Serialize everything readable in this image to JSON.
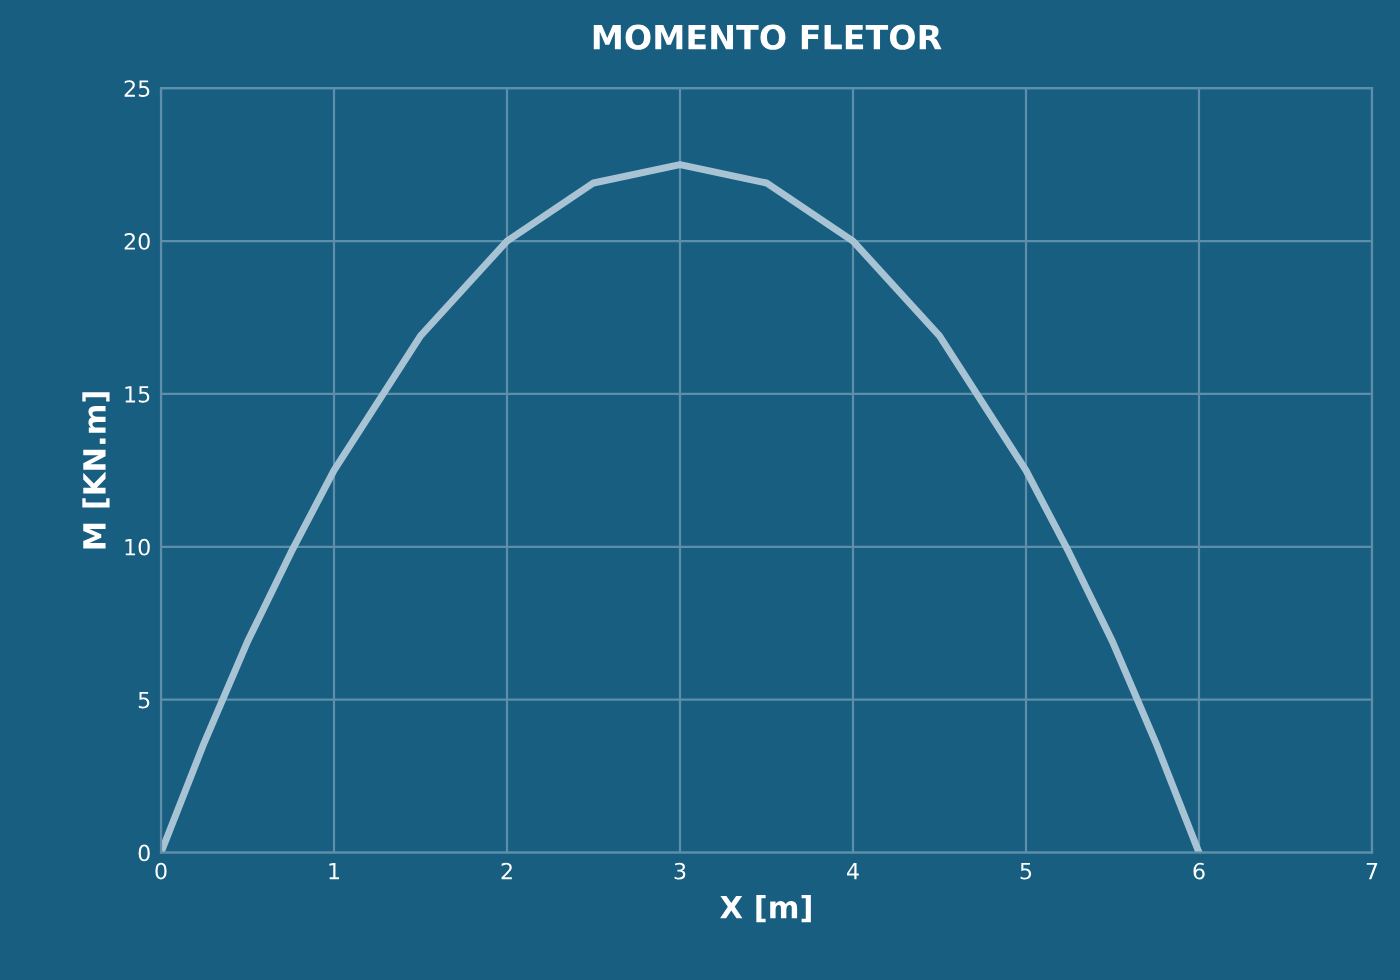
{
  "chart_data": {
    "type": "line",
    "title": "MOMENTO FLETOR",
    "xlabel": "X [m]",
    "ylabel": "M [KN.m]",
    "x": [
      0,
      0.25,
      0.5,
      0.75,
      1,
      1.5,
      2,
      2.5,
      3,
      3.5,
      4,
      4.5,
      5,
      5.25,
      5.5,
      5.75,
      6
    ],
    "series": [
      {
        "color": "#a8c3d4",
        "values": [
          0,
          3.6,
          6.9,
          9.8,
          12.5,
          16.9,
          20,
          21.9,
          22.5,
          21.9,
          20,
          16.9,
          12.5,
          9.8,
          6.9,
          3.6,
          0
        ]
      }
    ],
    "xlim": [
      0,
      7
    ],
    "xticks": [
      0,
      1,
      2,
      3,
      4,
      5,
      6,
      7
    ],
    "ylim": [
      0,
      25
    ],
    "yticks": [
      0,
      5,
      10,
      15,
      20,
      25
    ],
    "grid": true,
    "marker": "none",
    "line_style": "solid"
  }
}
